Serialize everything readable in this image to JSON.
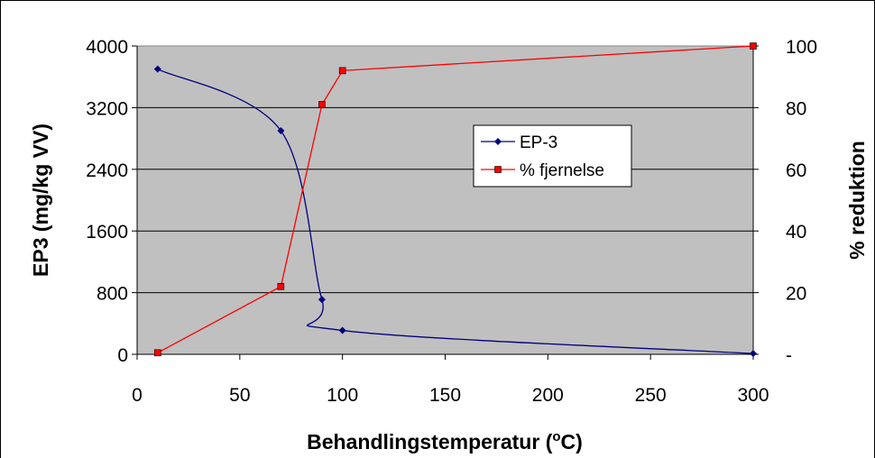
{
  "chart_data": {
    "type": "line",
    "title": "",
    "xlabel": "Behandlingstemperatur (",
    "xlabel_sup": "o",
    "xlabel_end": "C)",
    "ylabel": "EP3 (mg/kg VV)",
    "y2label": "% reduktion",
    "xlim": [
      0,
      300
    ],
    "xticks": [
      "0",
      "50",
      "100",
      "150",
      "200",
      "250",
      "300"
    ],
    "ylim": [
      0,
      4000
    ],
    "yticks": [
      "0",
      "800",
      "1600",
      "2400",
      "3200",
      "4000"
    ],
    "y2lim": [
      0,
      100
    ],
    "y2ticks": [
      "-",
      "20",
      "40",
      "60",
      "80",
      "100"
    ],
    "grid": true,
    "legend_position": "center-right",
    "plot_background": "#c0c0c0",
    "series": [
      {
        "name": "EP-3",
        "axis": "left",
        "color": "#000080",
        "marker": "diamond",
        "smooth": true,
        "x": [
          10,
          70,
          90,
          100,
          300
        ],
        "y": [
          3700,
          2900,
          710,
          310,
          10
        ]
      },
      {
        "name": "% fjernelse",
        "axis": "right",
        "color": "#ff0000",
        "marker": "square",
        "smooth": false,
        "x": [
          10,
          70,
          90,
          100,
          300
        ],
        "y": [
          0.5,
          22,
          81,
          92,
          100
        ]
      }
    ]
  }
}
